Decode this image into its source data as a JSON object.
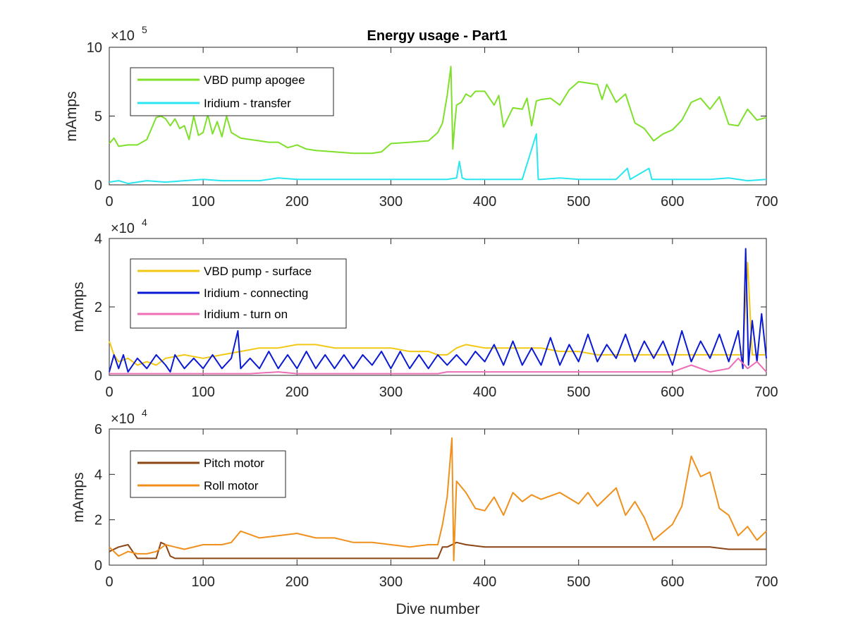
{
  "chart_data": [
    {
      "type": "line",
      "title": "Energy usage - Part1",
      "xlabel": "",
      "ylabel": "mAmps",
      "exponent_label": "×10",
      "exponent_power": "5",
      "xlim": [
        0,
        700
      ],
      "ylim": [
        0,
        10
      ],
      "x_ticks": [
        "0",
        "100",
        "200",
        "300",
        "400",
        "500",
        "600",
        "700"
      ],
      "y_ticks": [
        "0",
        "5",
        "10"
      ],
      "x_tick_values": [
        0,
        100,
        200,
        300,
        400,
        500,
        600,
        700
      ],
      "y_tick_values": [
        0,
        5,
        10
      ],
      "legend_position": "top-left",
      "series": [
        {
          "name": "VBD pump apogee",
          "color": "#7ee02a",
          "x": [
            0,
            5,
            10,
            20,
            30,
            40,
            50,
            55,
            60,
            65,
            70,
            75,
            80,
            85,
            90,
            95,
            100,
            105,
            110,
            115,
            120,
            125,
            130,
            140,
            150,
            160,
            170,
            180,
            190,
            200,
            210,
            220,
            240,
            260,
            280,
            290,
            300,
            320,
            340,
            350,
            355,
            360,
            364,
            366,
            368,
            370,
            375,
            380,
            385,
            390,
            400,
            410,
            415,
            420,
            430,
            440,
            445,
            450,
            455,
            460,
            470,
            480,
            490,
            500,
            510,
            520,
            525,
            530,
            540,
            550,
            560,
            570,
            580,
            590,
            600,
            610,
            620,
            630,
            640,
            650,
            660,
            670,
            680,
            690,
            700
          ],
          "y": [
            3.0,
            3.4,
            2.8,
            2.9,
            2.9,
            3.3,
            4.9,
            5.0,
            4.8,
            4.3,
            4.8,
            4.1,
            4.3,
            3.3,
            5.0,
            3.6,
            3.8,
            5.1,
            3.7,
            4.6,
            3.5,
            5.0,
            3.8,
            3.4,
            3.3,
            3.2,
            3.1,
            3.1,
            2.7,
            2.9,
            2.6,
            2.5,
            2.4,
            2.3,
            2.3,
            2.4,
            3.0,
            3.1,
            3.2,
            3.8,
            4.5,
            6.5,
            8.6,
            2.6,
            4.4,
            5.8,
            6.0,
            6.6,
            6.4,
            6.8,
            6.8,
            5.8,
            6.5,
            4.2,
            5.6,
            5.5,
            6.3,
            4.3,
            6.1,
            6.2,
            6.3,
            5.8,
            6.9,
            7.5,
            7.4,
            7.3,
            6.2,
            7.3,
            6.0,
            6.6,
            4.5,
            4.1,
            3.2,
            3.7,
            4.0,
            4.7,
            6.0,
            6.3,
            5.5,
            6.4,
            4.4,
            4.3,
            5.5,
            4.7,
            4.9
          ]
        },
        {
          "name": "Iridium - transfer",
          "color": "#29e6f0",
          "x": [
            0,
            10,
            20,
            40,
            60,
            80,
            100,
            120,
            140,
            160,
            180,
            200,
            220,
            240,
            260,
            280,
            300,
            320,
            340,
            350,
            360,
            370,
            373,
            376,
            380,
            400,
            440,
            455,
            457,
            460,
            480,
            500,
            540,
            552,
            555,
            575,
            578,
            600,
            640,
            660,
            680,
            700
          ],
          "y": [
            0.2,
            0.3,
            0.1,
            0.3,
            0.2,
            0.3,
            0.4,
            0.3,
            0.3,
            0.3,
            0.5,
            0.4,
            0.4,
            0.4,
            0.4,
            0.4,
            0.4,
            0.4,
            0.4,
            0.4,
            0.4,
            0.5,
            1.7,
            0.5,
            0.4,
            0.4,
            0.4,
            3.7,
            0.4,
            0.4,
            0.5,
            0.4,
            0.4,
            1.2,
            0.4,
            1.2,
            0.4,
            0.4,
            0.4,
            0.5,
            0.3,
            0.4
          ]
        }
      ]
    },
    {
      "type": "line",
      "title": "",
      "xlabel": "",
      "ylabel": "mAmps",
      "exponent_label": "×10",
      "exponent_power": "4",
      "xlim": [
        0,
        700
      ],
      "ylim": [
        0,
        4
      ],
      "x_ticks": [
        "0",
        "100",
        "200",
        "300",
        "400",
        "500",
        "600",
        "700"
      ],
      "y_ticks": [
        "0",
        "2",
        "4"
      ],
      "x_tick_values": [
        0,
        100,
        200,
        300,
        400,
        500,
        600,
        700
      ],
      "y_tick_values": [
        0,
        2,
        4
      ],
      "legend_position": "top-left",
      "series": [
        {
          "name": "VBD pump - surface",
          "color": "#f2c813",
          "x": [
            0,
            5,
            10,
            20,
            30,
            40,
            50,
            60,
            80,
            100,
            120,
            140,
            160,
            180,
            200,
            220,
            240,
            260,
            280,
            300,
            320,
            340,
            350,
            360,
            370,
            380,
            400,
            420,
            440,
            460,
            480,
            500,
            520,
            540,
            560,
            580,
            600,
            620,
            640,
            660,
            675,
            680,
            685,
            690,
            700
          ],
          "y": [
            1.0,
            0.6,
            0.4,
            0.5,
            0.3,
            0.4,
            0.3,
            0.5,
            0.6,
            0.5,
            0.6,
            0.7,
            0.8,
            0.8,
            0.9,
            0.9,
            0.8,
            0.8,
            0.8,
            0.8,
            0.7,
            0.7,
            0.6,
            0.6,
            0.8,
            0.9,
            0.8,
            0.8,
            0.8,
            0.8,
            0.7,
            0.7,
            0.6,
            0.6,
            0.6,
            0.6,
            0.6,
            0.6,
            0.6,
            0.6,
            0.6,
            3.3,
            0.6,
            0.6,
            0.6
          ]
        },
        {
          "name": "Iridium - connecting",
          "color": "#0a1ad4",
          "x": [
            0,
            5,
            10,
            15,
            20,
            30,
            40,
            50,
            60,
            65,
            70,
            80,
            90,
            100,
            110,
            120,
            130,
            137,
            140,
            150,
            160,
            170,
            180,
            190,
            200,
            210,
            220,
            230,
            240,
            250,
            260,
            270,
            280,
            290,
            300,
            310,
            320,
            330,
            340,
            350,
            360,
            370,
            380,
            390,
            400,
            410,
            420,
            430,
            440,
            450,
            460,
            470,
            480,
            490,
            500,
            510,
            520,
            530,
            540,
            550,
            560,
            570,
            580,
            590,
            600,
            610,
            620,
            630,
            640,
            650,
            660,
            670,
            675,
            678,
            681,
            685,
            690,
            695,
            700
          ],
          "y": [
            0.1,
            0.6,
            0.2,
            0.6,
            0.1,
            0.5,
            0.2,
            0.6,
            0.3,
            0.1,
            0.6,
            0.2,
            0.5,
            0.2,
            0.6,
            0.2,
            0.5,
            1.3,
            0.2,
            0.5,
            0.2,
            0.7,
            0.2,
            0.6,
            0.2,
            0.7,
            0.2,
            0.6,
            0.2,
            0.6,
            0.2,
            0.6,
            0.3,
            0.7,
            0.2,
            0.7,
            0.2,
            0.6,
            0.2,
            0.6,
            0.3,
            0.6,
            0.3,
            0.7,
            0.4,
            0.9,
            0.3,
            1.0,
            0.3,
            0.8,
            0.3,
            1.1,
            0.3,
            0.9,
            0.4,
            1.2,
            0.4,
            0.9,
            0.5,
            1.2,
            0.4,
            1.0,
            0.5,
            1.0,
            0.3,
            1.3,
            0.4,
            1.0,
            0.5,
            1.2,
            0.4,
            1.3,
            0.2,
            3.7,
            0.3,
            1.6,
            0.4,
            1.8,
            0.5
          ]
        },
        {
          "name": "Iridium - turn on",
          "color": "#ec6fb5",
          "x": [
            0,
            50,
            100,
            150,
            180,
            200,
            250,
            300,
            350,
            360,
            400,
            450,
            500,
            550,
            600,
            620,
            640,
            660,
            670,
            680,
            690,
            700
          ],
          "y": [
            0.05,
            0.05,
            0.05,
            0.05,
            0.1,
            0.05,
            0.05,
            0.05,
            0.05,
            0.1,
            0.1,
            0.1,
            0.1,
            0.1,
            0.1,
            0.3,
            0.1,
            0.2,
            0.5,
            0.2,
            0.4,
            0.1
          ]
        }
      ]
    },
    {
      "type": "line",
      "title": "",
      "xlabel": "Dive number",
      "ylabel": "mAmps",
      "exponent_label": "×10",
      "exponent_power": "4",
      "xlim": [
        0,
        700
      ],
      "ylim": [
        0,
        6
      ],
      "x_ticks": [
        "0",
        "100",
        "200",
        "300",
        "400",
        "500",
        "600",
        "700"
      ],
      "y_ticks": [
        "0",
        "2",
        "4",
        "6"
      ],
      "x_tick_values": [
        0,
        100,
        200,
        300,
        400,
        500,
        600,
        700
      ],
      "y_tick_values": [
        0,
        2,
        4,
        6
      ],
      "legend_position": "top-left",
      "series": [
        {
          "name": "Pitch motor",
          "color": "#8b4513",
          "x": [
            0,
            10,
            20,
            30,
            40,
            50,
            55,
            60,
            65,
            70,
            80,
            100,
            120,
            140,
            160,
            180,
            200,
            220,
            240,
            260,
            280,
            300,
            320,
            340,
            350,
            355,
            360,
            370,
            380,
            400,
            450,
            500,
            550,
            600,
            620,
            640,
            660,
            680,
            700
          ],
          "y": [
            0.6,
            0.8,
            0.9,
            0.3,
            0.3,
            0.3,
            1.0,
            0.9,
            0.4,
            0.3,
            0.3,
            0.3,
            0.3,
            0.3,
            0.3,
            0.3,
            0.3,
            0.3,
            0.3,
            0.3,
            0.3,
            0.3,
            0.3,
            0.3,
            0.3,
            0.8,
            0.8,
            1.0,
            0.9,
            0.8,
            0.8,
            0.8,
            0.8,
            0.8,
            0.8,
            0.8,
            0.7,
            0.7,
            0.7
          ]
        },
        {
          "name": "Roll motor",
          "color": "#f0901c",
          "x": [
            0,
            10,
            20,
            30,
            40,
            50,
            60,
            70,
            80,
            100,
            120,
            130,
            140,
            160,
            180,
            200,
            220,
            240,
            260,
            280,
            300,
            320,
            340,
            350,
            355,
            360,
            365,
            367,
            370,
            380,
            390,
            400,
            410,
            420,
            430,
            440,
            450,
            460,
            480,
            500,
            510,
            520,
            540,
            550,
            560,
            570,
            580,
            600,
            610,
            620,
            630,
            640,
            650,
            660,
            670,
            680,
            690,
            700
          ],
          "y": [
            0.8,
            0.4,
            0.6,
            0.5,
            0.5,
            0.6,
            0.9,
            0.8,
            0.7,
            0.9,
            0.9,
            1.0,
            1.5,
            1.2,
            1.3,
            1.4,
            1.2,
            1.2,
            1.0,
            1.0,
            0.9,
            0.8,
            0.9,
            0.9,
            1.8,
            3.0,
            5.6,
            0.2,
            3.7,
            3.2,
            2.5,
            2.4,
            3.0,
            2.2,
            3.2,
            2.8,
            3.1,
            2.9,
            3.2,
            2.7,
            3.2,
            2.6,
            3.4,
            2.2,
            2.8,
            2.1,
            1.1,
            1.8,
            2.6,
            4.8,
            3.9,
            4.1,
            2.5,
            2.2,
            1.3,
            1.7,
            1.1,
            1.5
          ]
        }
      ]
    }
  ]
}
